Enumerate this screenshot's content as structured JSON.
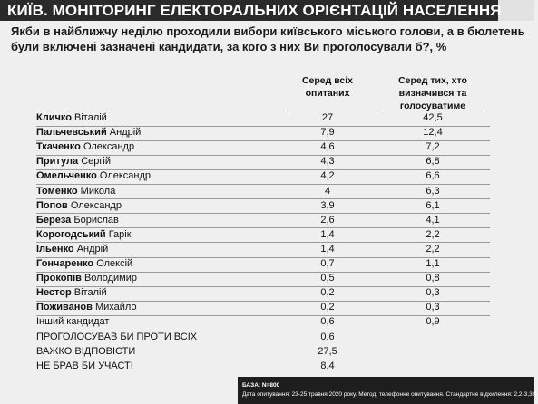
{
  "header": {
    "title": "КИЇВ. МОНІТОРИНГ ЕЛЕКТОРАЛЬНИХ ОРІЄНТАЦІЙ НАСЕЛЕННЯ",
    "question": "Якби в найближчу неділю проходили вибори київського міського голови, а в бюлетень були включені зазначені кандидати, за кого з них Ви проголосували б?, %"
  },
  "columns": {
    "col1": "Серед всіх опитаних",
    "col2": "Серед тих, хто визначився та голосуватиме"
  },
  "chart_data": {
    "type": "table",
    "columns": [
      "Серед всіх опитаних",
      "Серед тих, хто визначився та голосуватиме"
    ],
    "rows": [
      {
        "surname": "Кличко",
        "given": "Віталій",
        "all": "27",
        "decided": "42,5"
      },
      {
        "surname": "Пальчевський",
        "given": "Андрій",
        "all": "7,9",
        "decided": "12,4"
      },
      {
        "surname": "Ткаченко",
        "given": "Олександр",
        "all": "4,6",
        "decided": "7,2"
      },
      {
        "surname": "Притула",
        "given": "Сергій",
        "all": "4,3",
        "decided": "6,8"
      },
      {
        "surname": "Омельченко",
        "given": "Олександр",
        "all": "4,2",
        "decided": "6,6"
      },
      {
        "surname": "Томенко",
        "given": "Микола",
        "all": "4",
        "decided": "6,3"
      },
      {
        "surname": "Попов",
        "given": "Олександр",
        "all": "3,9",
        "decided": "6,1"
      },
      {
        "surname": "Береза",
        "given": "Борислав",
        "all": "2,6",
        "decided": "4,1"
      },
      {
        "surname": "Корогодський",
        "given": "Гарік",
        "all": "1,4",
        "decided": "2,2"
      },
      {
        "surname": "Ільенко",
        "given": "Андрій",
        "all": "1,4",
        "decided": "2,2"
      },
      {
        "surname": "Гончаренко",
        "given": "Олексій",
        "all": "0,7",
        "decided": "1,1"
      },
      {
        "surname": "Прокопів",
        "given": "Володимир",
        "all": "0,5",
        "decided": "0,8"
      },
      {
        "surname": "Нестор",
        "given": "Віталій",
        "all": "0,2",
        "decided": "0,3"
      },
      {
        "surname": "Поживанов",
        "given": "Михайло",
        "all": "0,2",
        "decided": "0,3"
      },
      {
        "surname": "",
        "given": "Інший кандидат",
        "all": "0,6",
        "decided": "0,9"
      },
      {
        "surname": "",
        "given": "ПРОГОЛОСУВАВ БИ ПРОТИ ВСІХ",
        "all": "0,6",
        "decided": ""
      },
      {
        "surname": "",
        "given": "ВАЖКО ВІДПОВІСТИ",
        "all": "27,5",
        "decided": ""
      },
      {
        "surname": "",
        "given": "НЕ БРАВ БИ УЧАСТІ",
        "all": "8,4",
        "decided": ""
      }
    ]
  },
  "footer": {
    "base": "БАЗА: N=800",
    "methodology": "Дата опитування: 23-25 травня 2020 року. Метод: телефонне опитування. Стандартне відхилення: 2,2-3,3%"
  },
  "colors": {
    "title_bg": "#2a2a2a",
    "page_bg": "#efefef",
    "footer_bg": "#1e1e1e"
  }
}
